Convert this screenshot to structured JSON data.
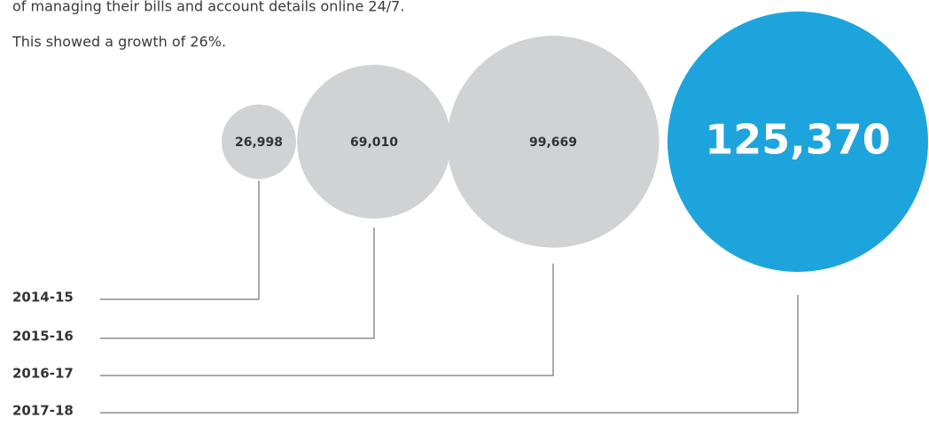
{
  "intro": [
    "of managing their bills and account details online 24/7.",
    "This showed a growth of 26%."
  ],
  "chart_data": {
    "type": "bubble",
    "categories": [
      "2014-15",
      "2015-16",
      "2016-17",
      "2017-18"
    ],
    "values": [
      26998,
      69010,
      99669,
      125370
    ],
    "value_labels": [
      "26,998",
      "69,010",
      "99,669",
      "125,370"
    ],
    "colors": [
      "#d1d2d4",
      "#d1d2d4",
      "#d1d2d4",
      "#1ea4dc"
    ]
  }
}
